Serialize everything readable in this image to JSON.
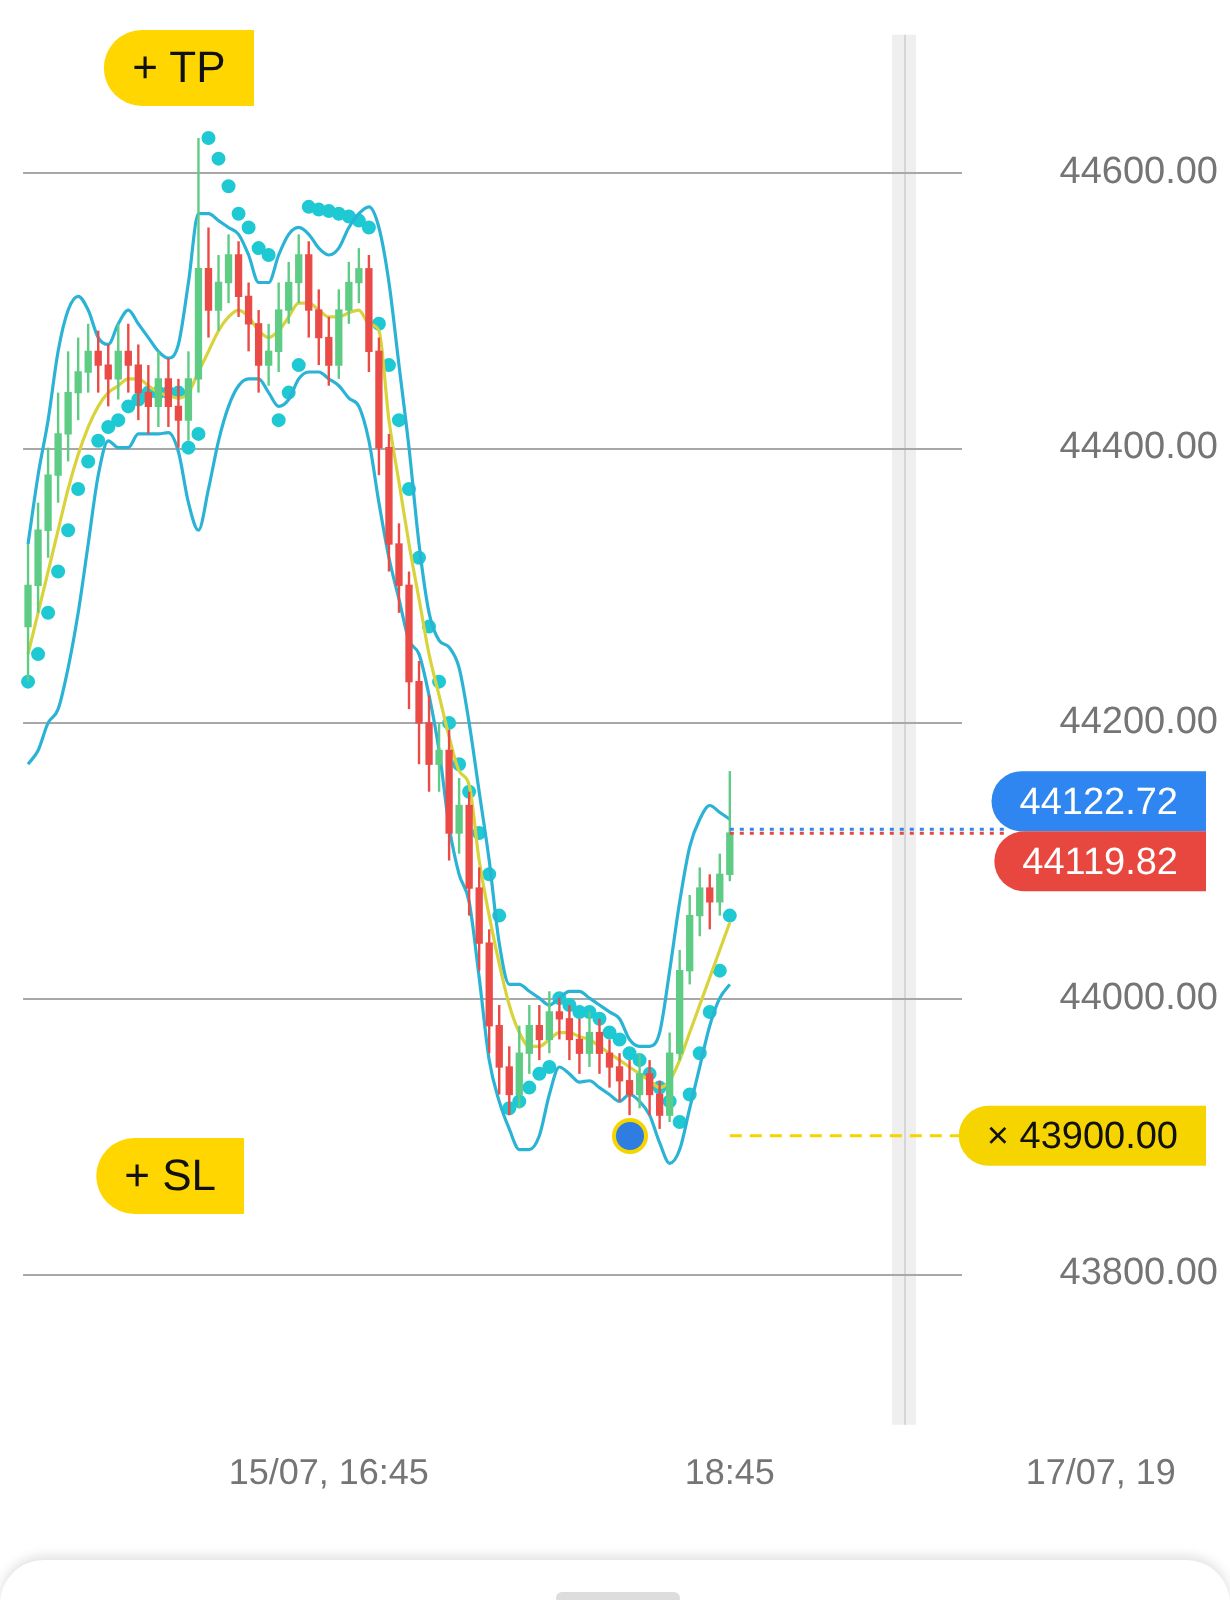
{
  "chart_data": {
    "type": "candlestick",
    "categories": [
      null,
      null,
      null,
      null,
      null,
      null,
      null,
      null,
      null,
      null,
      null,
      null,
      null,
      null,
      null,
      null,
      null,
      null,
      null,
      null,
      null,
      null,
      null,
      null,
      null,
      null,
      null,
      null,
      null,
      null,
      "15/07, 16:45",
      null,
      null,
      null,
      null,
      null,
      null,
      null,
      null,
      null,
      null,
      null,
      null,
      null,
      null,
      null,
      null,
      null,
      null,
      null,
      null,
      null,
      null,
      null,
      null,
      null,
      null,
      null,
      null,
      null,
      null,
      null,
      null,
      null,
      null,
      null,
      null,
      null,
      null,
      null,
      "18:45",
      null,
      null,
      null,
      null,
      null,
      null,
      null,
      null,
      null,
      null,
      null,
      null,
      null,
      null,
      null,
      null,
      null,
      null,
      null,
      null,
      null,
      null,
      null,
      null,
      null,
      null,
      null,
      null,
      null,
      null,
      null,
      null,
      null,
      null,
      null,
      null,
      "17/07, 19",
      null,
      null,
      null,
      null,
      null,
      null,
      null,
      null,
      null,
      null
    ],
    "ohlc": [
      [
        44270,
        44330,
        44230,
        44300
      ],
      [
        44300,
        44360,
        44280,
        44340
      ],
      [
        44340,
        44400,
        44320,
        44380
      ],
      [
        44380,
        44440,
        44360,
        44410
      ],
      [
        44410,
        44470,
        44390,
        44440
      ],
      [
        44440,
        44480,
        44420,
        44455
      ],
      [
        44455,
        44490,
        44440,
        44470
      ],
      [
        44470,
        44485,
        44440,
        44460
      ],
      [
        44460,
        44475,
        44430,
        44450
      ],
      [
        44450,
        44490,
        44435,
        44470
      ],
      [
        44470,
        44490,
        44440,
        44460
      ],
      [
        44460,
        44475,
        44420,
        44440
      ],
      [
        44440,
        44460,
        44410,
        44430
      ],
      [
        44430,
        44470,
        44415,
        44450
      ],
      [
        44450,
        44465,
        44415,
        44430
      ],
      [
        44430,
        44450,
        44400,
        44420
      ],
      [
        44420,
        44470,
        44405,
        44450
      ],
      [
        44450,
        44625,
        44440,
        44530
      ],
      [
        44530,
        44560,
        44480,
        44500
      ],
      [
        44500,
        44540,
        44485,
        44520
      ],
      [
        44520,
        44555,
        44505,
        44540
      ],
      [
        44540,
        44550,
        44495,
        44510
      ],
      [
        44510,
        44520,
        44470,
        44490
      ],
      [
        44490,
        44500,
        44440,
        44460
      ],
      [
        44460,
        44490,
        44445,
        44470
      ],
      [
        44470,
        44520,
        44455,
        44500
      ],
      [
        44500,
        44535,
        44490,
        44520
      ],
      [
        44520,
        44555,
        44505,
        44540
      ],
      [
        44540,
        44550,
        44480,
        44500
      ],
      [
        44500,
        44515,
        44460,
        44480
      ],
      [
        44480,
        44495,
        44445,
        44460
      ],
      [
        44460,
        44515,
        44450,
        44500
      ],
      [
        44500,
        44535,
        44490,
        44520
      ],
      [
        44520,
        44545,
        44505,
        44530
      ],
      [
        44530,
        44540,
        44455,
        44470
      ],
      [
        44470,
        44480,
        44380,
        44400
      ],
      [
        44400,
        44410,
        44310,
        44330
      ],
      [
        44330,
        44345,
        44280,
        44300
      ],
      [
        44300,
        44310,
        44210,
        44230
      ],
      [
        44230,
        44245,
        44170,
        44200
      ],
      [
        44200,
        44220,
        44150,
        44170
      ],
      [
        44170,
        44200,
        44150,
        44180
      ],
      [
        44180,
        44195,
        44100,
        44120
      ],
      [
        44120,
        44160,
        44105,
        44140
      ],
      [
        44140,
        44150,
        44060,
        44080
      ],
      [
        44080,
        44095,
        44020,
        44040
      ],
      [
        44040,
        44050,
        43960,
        43980
      ],
      [
        43980,
        43995,
        43930,
        43950
      ],
      [
        43950,
        43965,
        43915,
        43930
      ],
      [
        43930,
        43980,
        43920,
        43960
      ],
      [
        43960,
        43995,
        43945,
        43980
      ],
      [
        43980,
        43995,
        43955,
        43970
      ],
      [
        43970,
        44005,
        43960,
        43990
      ],
      [
        43990,
        44000,
        43970,
        43985
      ],
      [
        43985,
        43995,
        43955,
        43970
      ],
      [
        43970,
        43985,
        43945,
        43960
      ],
      [
        43960,
        43990,
        43950,
        43975
      ],
      [
        43975,
        43985,
        43945,
        43960
      ],
      [
        43960,
        43970,
        43935,
        43950
      ],
      [
        43950,
        43960,
        43925,
        43940
      ],
      [
        43940,
        43955,
        43915,
        43930
      ],
      [
        43930,
        43960,
        43920,
        43945
      ],
      [
        43945,
        43955,
        43915,
        43930
      ],
      [
        43930,
        43940,
        43905,
        43915
      ],
      [
        43915,
        43975,
        43910,
        43960
      ],
      [
        43960,
        44035,
        43955,
        44020
      ],
      [
        44020,
        44075,
        44010,
        44060
      ],
      [
        44060,
        44095,
        44045,
        44080
      ],
      [
        44080,
        44090,
        44050,
        44070
      ],
      [
        44070,
        44105,
        44060,
        44090
      ],
      [
        44090,
        44165,
        44085,
        44120
      ],
      null,
      null,
      null,
      null,
      null,
      null,
      null,
      null,
      null,
      null,
      null,
      null,
      null,
      null,
      null,
      null,
      null,
      null,
      null,
      null,
      null,
      null,
      null,
      null,
      null,
      null,
      null,
      null,
      null,
      null,
      null,
      null,
      null,
      null,
      null,
      null,
      null,
      null,
      null,
      null,
      null,
      null,
      null,
      null,
      null,
      null,
      null
    ],
    "colors": [
      "#5fcc85",
      "#5fcc85",
      "#5fcc85",
      "#5fcc85",
      "#5fcc85",
      "#5fcc85",
      "#5fcc85",
      "#ea4b47",
      "#ea4b47",
      "#5fcc85",
      "#ea4b47",
      "#ea4b47",
      "#ea4b47",
      "#5fcc85",
      "#ea4b47",
      "#ea4b47",
      "#5fcc85",
      "#5fcc85",
      "#ea4b47",
      "#5fcc85",
      "#5fcc85",
      "#ea4b47",
      "#ea4b47",
      "#ea4b47",
      "#5fcc85",
      "#5fcc85",
      "#5fcc85",
      "#5fcc85",
      "#ea4b47",
      "#ea4b47",
      "#ea4b47",
      "#5fcc85",
      "#5fcc85",
      "#5fcc85",
      "#ea4b47",
      "#ea4b47",
      "#ea4b47",
      "#ea4b47",
      "#ea4b47",
      "#ea4b47",
      "#ea4b47",
      "#5fcc85",
      "#ea4b47",
      "#5fcc85",
      "#ea4b47",
      "#ea4b47",
      "#ea4b47",
      "#ea4b47",
      "#ea4b47",
      "#5fcc85",
      "#5fcc85",
      "#ea4b47",
      "#5fcc85",
      "#ea4b47",
      "#ea4b47",
      "#ea4b47",
      "#5fcc85",
      "#ea4b47",
      "#ea4b47",
      "#ea4b47",
      "#ea4b47",
      "#5fcc85",
      "#ea4b47",
      "#ea4b47",
      "#5fcc85",
      "#5fcc85",
      "#5fcc85",
      "#5fcc85",
      "#ea4b47",
      "#5fcc85",
      "#5fcc85",
      null,
      null,
      null,
      null,
      null,
      null,
      null,
      null,
      null,
      null,
      null,
      null,
      null,
      null,
      null,
      null,
      null,
      null,
      null,
      null,
      null,
      null,
      null,
      null,
      null,
      null,
      null,
      null,
      null,
      null,
      null,
      null,
      null,
      null,
      null,
      null,
      null,
      null,
      null,
      null,
      null,
      null,
      null,
      null,
      null,
      null,
      null
    ],
    "series": [
      {
        "type": "line",
        "color": "#2bb3d6",
        "values": [
          44330,
          44380,
          44420,
          44470,
          44500,
          44510,
          44500,
          44480,
          44475,
          44490,
          44500,
          44490,
          44480,
          44470,
          44465,
          44475,
          44520,
          44570,
          44570,
          44565,
          44560,
          44555,
          44540,
          44520,
          44520,
          44540,
          44555,
          44560,
          44555,
          44545,
          44540,
          44545,
          44560,
          44570,
          44575,
          44560,
          44520,
          44460,
          44400,
          44330,
          44280,
          44260,
          44255,
          44240,
          44200,
          44150,
          44100,
          44040,
          44010,
          44010,
          44005,
          44000,
          43995,
          44000,
          44005,
          44005,
          44000,
          43995,
          43990,
          43985,
          43970,
          43965,
          43965,
          43975,
          44020,
          44070,
          44110,
          44130,
          44140,
          44135,
          44130,
          null,
          null,
          null,
          null,
          null,
          null,
          null,
          null,
          null,
          null,
          null,
          null,
          null,
          null,
          null,
          null,
          null,
          null,
          null,
          null,
          null,
          null,
          null,
          null,
          null,
          null,
          null,
          null,
          null,
          null,
          null,
          null,
          null,
          null,
          null,
          null,
          null,
          null,
          null,
          null,
          null,
          null,
          null,
          null,
          null,
          null,
          null
        ]
      },
      {
        "type": "line",
        "color": "#2bb3d6",
        "values": [
          44170,
          44180,
          44200,
          44210,
          44240,
          44280,
          44330,
          44380,
          44405,
          44400,
          44400,
          44410,
          44410,
          44410,
          44411,
          44397,
          44360,
          44340,
          44370,
          44405,
          44430,
          44445,
          44450,
          44450,
          44440,
          44430,
          44435,
          44450,
          44455,
          44455,
          44450,
          44445,
          44436,
          44430,
          44405,
          44360,
          44320,
          44290,
          44260,
          44250,
          44220,
          44180,
          44125,
          44090,
          44070,
          44015,
          43955,
          43925,
          43905,
          43890,
          43890,
          43900,
          43930,
          43950,
          43945,
          43939,
          43940,
          43935,
          43930,
          43925,
          43930,
          43925,
          43915,
          43895,
          43880,
          43890,
          43920,
          43950,
          43980,
          44000,
          44010,
          null,
          null,
          null,
          null,
          null,
          null,
          null,
          null,
          null,
          null,
          null,
          null,
          null,
          null,
          null,
          null,
          null,
          null,
          null,
          null,
          null,
          null,
          null,
          null,
          null,
          null,
          null,
          null,
          null,
          null,
          null,
          null,
          null,
          null,
          null,
          null,
          null,
          null,
          null,
          null,
          null,
          null,
          null,
          null,
          null,
          null,
          null
        ]
      },
      {
        "type": "line",
        "color": "#d9d33b",
        "values": [
          44250,
          44280,
          44310,
          44340,
          44370,
          44395,
          44415,
          44430,
          44440,
          44445,
          44450,
          44450,
          44445,
          44440,
          44438,
          44436,
          44440,
          44455,
          44470,
          44485,
          44495,
          44500,
          44495,
          44485,
          44480,
          44485,
          44495,
          44505,
          44505,
          44500,
          44495,
          44495,
          44498,
          44500,
          44490,
          44485,
          44420,
          44375,
          44330,
          44290,
          44250,
          44220,
          44190,
          44165,
          44155,
          44100,
          44060,
          44025,
          43995,
          43975,
          43965,
          43965,
          43970,
          43975,
          43975,
          43972,
          43970,
          43965,
          43960,
          43955,
          43950,
          43945,
          43940,
          43935,
          43940,
          43955,
          43975,
          43995,
          44015,
          44035,
          44055,
          null,
          null,
          null,
          null,
          null,
          null,
          null,
          null,
          null,
          null,
          null,
          null,
          null,
          null,
          null,
          null,
          null,
          null,
          null,
          null,
          null,
          null,
          null,
          null,
          null,
          null,
          null,
          null,
          null,
          null,
          null,
          null,
          null,
          null,
          null,
          null,
          null,
          null,
          null,
          null,
          null,
          null,
          null,
          null,
          null,
          null,
          null
        ]
      },
      {
        "type": "scatter",
        "color": "#1ec9d3",
        "marker": "circle",
        "values": [
          44230,
          44250,
          44280,
          44310,
          44340,
          44370,
          44390,
          44405,
          44415,
          44420,
          44430,
          44435,
          44440,
          44440,
          44440,
          44440,
          44400,
          44410,
          44625,
          44610,
          44590,
          44570,
          44560,
          44545,
          44540,
          44420,
          44440,
          44460,
          44575,
          44573,
          44572,
          44570,
          44568,
          44565,
          44560,
          44490,
          44460,
          44420,
          44370,
          44320,
          44270,
          44230,
          44200,
          44170,
          44150,
          44120,
          44090,
          44060,
          43920,
          43925,
          43935,
          43945,
          43950,
          44000,
          43995,
          43990,
          43990,
          43985,
          43975,
          43970,
          43960,
          43955,
          43945,
          43935,
          43925,
          43910,
          43930,
          43960,
          43990,
          44020,
          44060,
          null,
          null,
          null,
          null,
          null,
          null,
          null,
          null,
          null,
          null,
          null,
          null,
          null,
          null,
          null,
          null,
          null,
          null,
          null,
          null,
          null,
          null,
          null,
          null,
          null,
          null,
          null,
          null,
          null,
          null,
          null,
          null,
          null,
          null,
          null,
          null,
          null,
          null,
          null,
          null,
          null,
          null,
          null,
          null,
          null,
          null,
          null
        ]
      }
    ],
    "ylim": [
      43690,
      44700
    ],
    "yticks": [
      {
        "value": 43800,
        "label": "43800.00"
      },
      {
        "value": 44000,
        "label": "44000.00"
      },
      {
        "value": 44200,
        "label": "44200.00"
      },
      {
        "value": 44400,
        "label": "44400.00"
      },
      {
        "value": 44600,
        "label": "44600.00"
      }
    ],
    "grid": "y",
    "legend": false,
    "ref_lines": [
      {
        "axis": "y",
        "value": 44122.72,
        "label": "44122.72",
        "color": "#2f86f0",
        "line_style": "dotted"
      },
      {
        "axis": "y",
        "value": 44119.82,
        "label": "44119.82",
        "color": "#e8473f",
        "line_style": "dotted"
      },
      {
        "axis": "y",
        "value": 43900,
        "label": "× 43900.00",
        "color": "#f5d400",
        "line_style": "dashed"
      }
    ],
    "annotations": [
      "+ TP",
      "+ SL"
    ]
  }
}
